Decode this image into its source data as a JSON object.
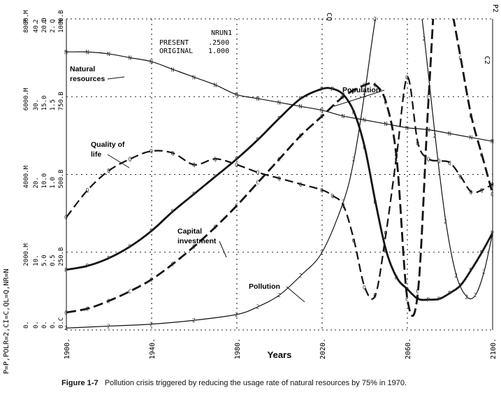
{
  "chart_data": {
    "type": "line",
    "xlabel": "Years",
    "x_ticks": [
      "1900.",
      "1940.",
      "1980.",
      "2020.",
      "2060.",
      "2100."
    ],
    "xlim": [
      1900,
      2100
    ],
    "legend_key": "P=P,POLR=2,CI=C,QL=Q,NR=N",
    "scale_columns": [
      {
        "header": "P",
        "ticks": [
          "0.",
          "2000.M",
          "4000.M",
          "6000.M",
          "8000.M"
        ]
      },
      {
        "header": "2",
        "ticks": [
          "0.",
          "10.",
          "20.",
          "30.",
          "40."
        ]
      },
      {
        "header": "C",
        "ticks": [
          "0.",
          "5.0",
          "10.0",
          "15.0",
          "20.0"
        ]
      },
      {
        "header": "Q",
        "ticks": [
          "0.",
          "0.5",
          "1.0",
          "1.5",
          "2."
        ]
      },
      {
        "header": "N",
        "ticks": [
          "0.C",
          "250.B",
          "500.B",
          "750.B",
          "1000.B"
        ]
      }
    ],
    "run_box": {
      "title": "NRUN1",
      "rows": [
        {
          "label": "PRESENT",
          "value": ".2500"
        },
        {
          "label": "ORIGINAL",
          "value": "1.000"
        }
      ]
    },
    "top_right_marks": [
      "CQ",
      "P2",
      "C2"
    ],
    "series": [
      {
        "name": "Population",
        "symbol": "P",
        "style": "thick-solid",
        "scale": "0-8000M (plot units 0-8)",
        "x": [
          1900,
          1910,
          1920,
          1930,
          1940,
          1950,
          1960,
          1970,
          1980,
          1990,
          2000,
          2010,
          2020,
          2025,
          2030,
          2035,
          2040,
          2045,
          2050,
          2055,
          2060,
          2065,
          2070,
          2075,
          2080,
          2085,
          2090,
          2095,
          2100
        ],
        "y": [
          1.55,
          1.65,
          1.85,
          2.15,
          2.55,
          3.05,
          3.5,
          3.95,
          4.4,
          4.9,
          5.45,
          5.95,
          6.2,
          6.2,
          6.05,
          5.6,
          4.7,
          3.3,
          2.05,
          1.35,
          1.05,
          0.8,
          0.78,
          0.8,
          0.95,
          1.15,
          1.55,
          2.0,
          2.5
        ]
      },
      {
        "name": "Pollution",
        "symbol": "2",
        "style": "thin-solid",
        "scale": "0-40 (plot units 0-8)",
        "x": [
          1900,
          1920,
          1940,
          1960,
          1980,
          1990,
          2000,
          2010,
          2020,
          2030,
          2035,
          2040,
          2045,
          2050,
          2055,
          2060,
          2063,
          2068,
          2073,
          2078,
          2083,
          2088,
          2092,
          2096,
          2100
        ],
        "y": [
          0.05,
          0.1,
          0.15,
          0.25,
          0.4,
          0.6,
          0.9,
          1.4,
          2.0,
          3.3,
          4.4,
          6.1,
          8.0,
          9.3,
          9.6,
          9.7,
          9.6,
          7.5,
          5.0,
          2.8,
          1.4,
          0.85,
          0.9,
          1.5,
          2.5
        ]
      },
      {
        "name": "Capital investment",
        "symbol": "C",
        "style": "thick-dashed",
        "scale": "0-20 (plot units 0-8)",
        "x": [
          1900,
          1910,
          1920,
          1930,
          1940,
          1950,
          1960,
          1970,
          1980,
          1990,
          2000,
          2010,
          2020,
          2030,
          2040,
          2045,
          2050,
          2055,
          2060,
          2065,
          2070,
          2075,
          2080,
          2085,
          2090,
          2095,
          2100
        ],
        "y": [
          0.45,
          0.55,
          0.75,
          1.0,
          1.3,
          1.7,
          2.15,
          2.65,
          3.2,
          3.8,
          4.4,
          5.0,
          5.5,
          6.0,
          6.3,
          6.3,
          5.85,
          4.4,
          0.8,
          1.0,
          6.0,
          10.0,
          8.5,
          7.0,
          5.5,
          4.5,
          3.5
        ]
      },
      {
        "name": "Quality of life",
        "symbol": "Q",
        "style": "dashed",
        "scale": "0-2 (plot units 0-8)",
        "x": [
          1900,
          1910,
          1920,
          1930,
          1940,
          1950,
          1960,
          1970,
          1980,
          1990,
          2000,
          2010,
          2020,
          2025,
          2030,
          2035,
          2040,
          2045,
          2050,
          2055,
          2060,
          2065,
          2070,
          2075,
          2080,
          2085,
          2090,
          2095,
          2100
        ],
        "y": [
          2.9,
          3.6,
          4.1,
          4.4,
          4.6,
          4.55,
          4.25,
          4.4,
          4.25,
          4.05,
          3.9,
          3.75,
          3.6,
          3.45,
          3.2,
          2.3,
          1.1,
          0.9,
          2.5,
          4.5,
          6.5,
          4.8,
          4.4,
          4.35,
          4.3,
          3.95,
          3.55,
          3.6,
          3.75
        ]
      },
      {
        "name": "Natural resources",
        "symbol": "N",
        "style": "thin-solid",
        "scale": "0-1000B (plot units 0-8)",
        "x": [
          1900,
          1910,
          1920,
          1930,
          1940,
          1950,
          1960,
          1970,
          1980,
          1990,
          2000,
          2010,
          2020,
          2030,
          2040,
          2050,
          2060,
          2070,
          2080,
          2090,
          2100
        ],
        "y": [
          7.15,
          7.15,
          7.1,
          7.0,
          6.9,
          6.7,
          6.5,
          6.3,
          6.05,
          5.95,
          5.85,
          5.75,
          5.65,
          5.5,
          5.4,
          5.3,
          5.2,
          5.15,
          5.05,
          4.95,
          4.85
        ]
      }
    ],
    "annotations": [
      {
        "text": "Population",
        "series": "Population"
      },
      {
        "text": "Natural resources",
        "series": "Natural resources"
      },
      {
        "text": "Quality of life",
        "series": "Quality of life"
      },
      {
        "text": "Capital investment",
        "series": "Capital investment"
      },
      {
        "text": "Pollution",
        "series": "Pollution"
      }
    ]
  },
  "caption": {
    "label": "Figure 1-7",
    "text": "Pollution crisis triggered by reducing the usage rate of natural resources by 75% in 1970."
  }
}
